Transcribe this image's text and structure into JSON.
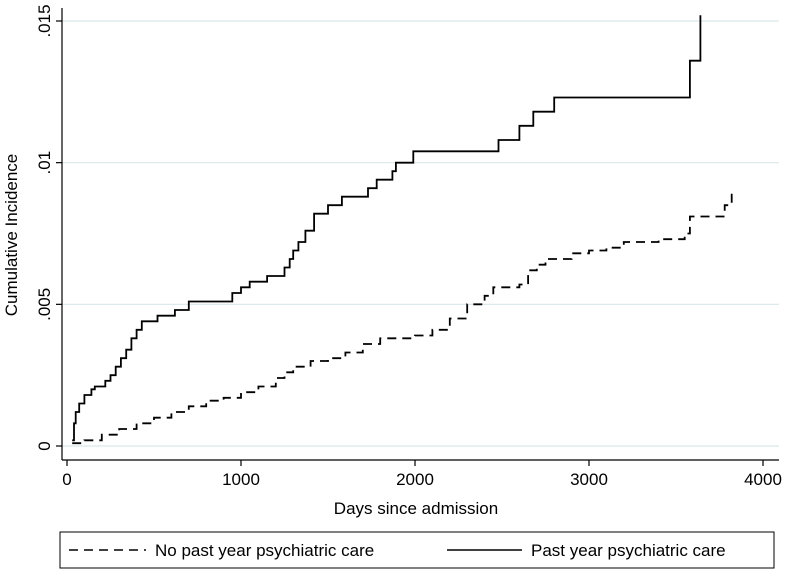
{
  "chart_data": {
    "type": "line",
    "step": true,
    "xlabel": "Days since admission",
    "ylabel": "Cumulative Incidence",
    "xlim": [
      0,
      4000
    ],
    "ylim": [
      0,
      0.015
    ],
    "xticks": [
      {
        "value": 0,
        "label": "0"
      },
      {
        "value": 1000,
        "label": "1000"
      },
      {
        "value": 2000,
        "label": "2000"
      },
      {
        "value": 3000,
        "label": "3000"
      },
      {
        "value": 4000,
        "label": "4000"
      }
    ],
    "yticks": [
      {
        "value": 0,
        "label": "0"
      },
      {
        "value": 0.005,
        "label": ".005"
      },
      {
        "value": 0.01,
        "label": ".01"
      },
      {
        "value": 0.015,
        "label": ".015"
      }
    ],
    "grid": "horizontal",
    "legend_position": "bottom",
    "series": [
      {
        "name": "No past year psychiatric care",
        "style": "dashed",
        "color": "#000000",
        "points": [
          [
            30,
            0.0001
          ],
          [
            100,
            0.0002
          ],
          [
            200,
            0.0004
          ],
          [
            300,
            0.0006
          ],
          [
            400,
            0.0008
          ],
          [
            500,
            0.001
          ],
          [
            600,
            0.0012
          ],
          [
            700,
            0.0014
          ],
          [
            800,
            0.0016
          ],
          [
            900,
            0.0017
          ],
          [
            1000,
            0.0019
          ],
          [
            1100,
            0.0021
          ],
          [
            1200,
            0.0024
          ],
          [
            1250,
            0.0026
          ],
          [
            1300,
            0.0028
          ],
          [
            1400,
            0.003
          ],
          [
            1500,
            0.0031
          ],
          [
            1600,
            0.0033
          ],
          [
            1700,
            0.0036
          ],
          [
            1800,
            0.0038
          ],
          [
            1900,
            0.0038
          ],
          [
            2000,
            0.0039
          ],
          [
            2100,
            0.0041
          ],
          [
            2200,
            0.0045
          ],
          [
            2300,
            0.005
          ],
          [
            2400,
            0.0053
          ],
          [
            2450,
            0.0056
          ],
          [
            2600,
            0.0057
          ],
          [
            2650,
            0.0062
          ],
          [
            2700,
            0.0064
          ],
          [
            2750,
            0.0066
          ],
          [
            2900,
            0.0068
          ],
          [
            3000,
            0.0069
          ],
          [
            3100,
            0.007
          ],
          [
            3200,
            0.0072
          ],
          [
            3400,
            0.0073
          ],
          [
            3550,
            0.0075
          ],
          [
            3580,
            0.0081
          ],
          [
            3700,
            0.0081
          ],
          [
            3780,
            0.0085
          ],
          [
            3820,
            0.009
          ]
        ]
      },
      {
        "name": "Past year psychiatric care",
        "style": "solid",
        "color": "#000000",
        "points": [
          [
            30,
            0.0002
          ],
          [
            40,
            0.0008
          ],
          [
            50,
            0.0012
          ],
          [
            70,
            0.0015
          ],
          [
            100,
            0.0018
          ],
          [
            140,
            0.002
          ],
          [
            160,
            0.0021
          ],
          [
            220,
            0.0023
          ],
          [
            250,
            0.0025
          ],
          [
            280,
            0.0028
          ],
          [
            310,
            0.0031
          ],
          [
            340,
            0.0034
          ],
          [
            370,
            0.0038
          ],
          [
            400,
            0.0041
          ],
          [
            430,
            0.0044
          ],
          [
            520,
            0.0046
          ],
          [
            620,
            0.0048
          ],
          [
            700,
            0.0051
          ],
          [
            950,
            0.0054
          ],
          [
            1000,
            0.0056
          ],
          [
            1050,
            0.0058
          ],
          [
            1150,
            0.006
          ],
          [
            1250,
            0.0063
          ],
          [
            1280,
            0.0066
          ],
          [
            1300,
            0.0069
          ],
          [
            1330,
            0.0072
          ],
          [
            1370,
            0.0076
          ],
          [
            1420,
            0.0082
          ],
          [
            1500,
            0.0085
          ],
          [
            1580,
            0.0088
          ],
          [
            1730,
            0.0091
          ],
          [
            1780,
            0.0094
          ],
          [
            1870,
            0.0097
          ],
          [
            1890,
            0.01
          ],
          [
            1990,
            0.0104
          ],
          [
            2480,
            0.0108
          ],
          [
            2600,
            0.0113
          ],
          [
            2680,
            0.0118
          ],
          [
            2800,
            0.0123
          ],
          [
            3580,
            0.0136
          ],
          [
            3640,
            0.0152
          ]
        ]
      }
    ]
  }
}
